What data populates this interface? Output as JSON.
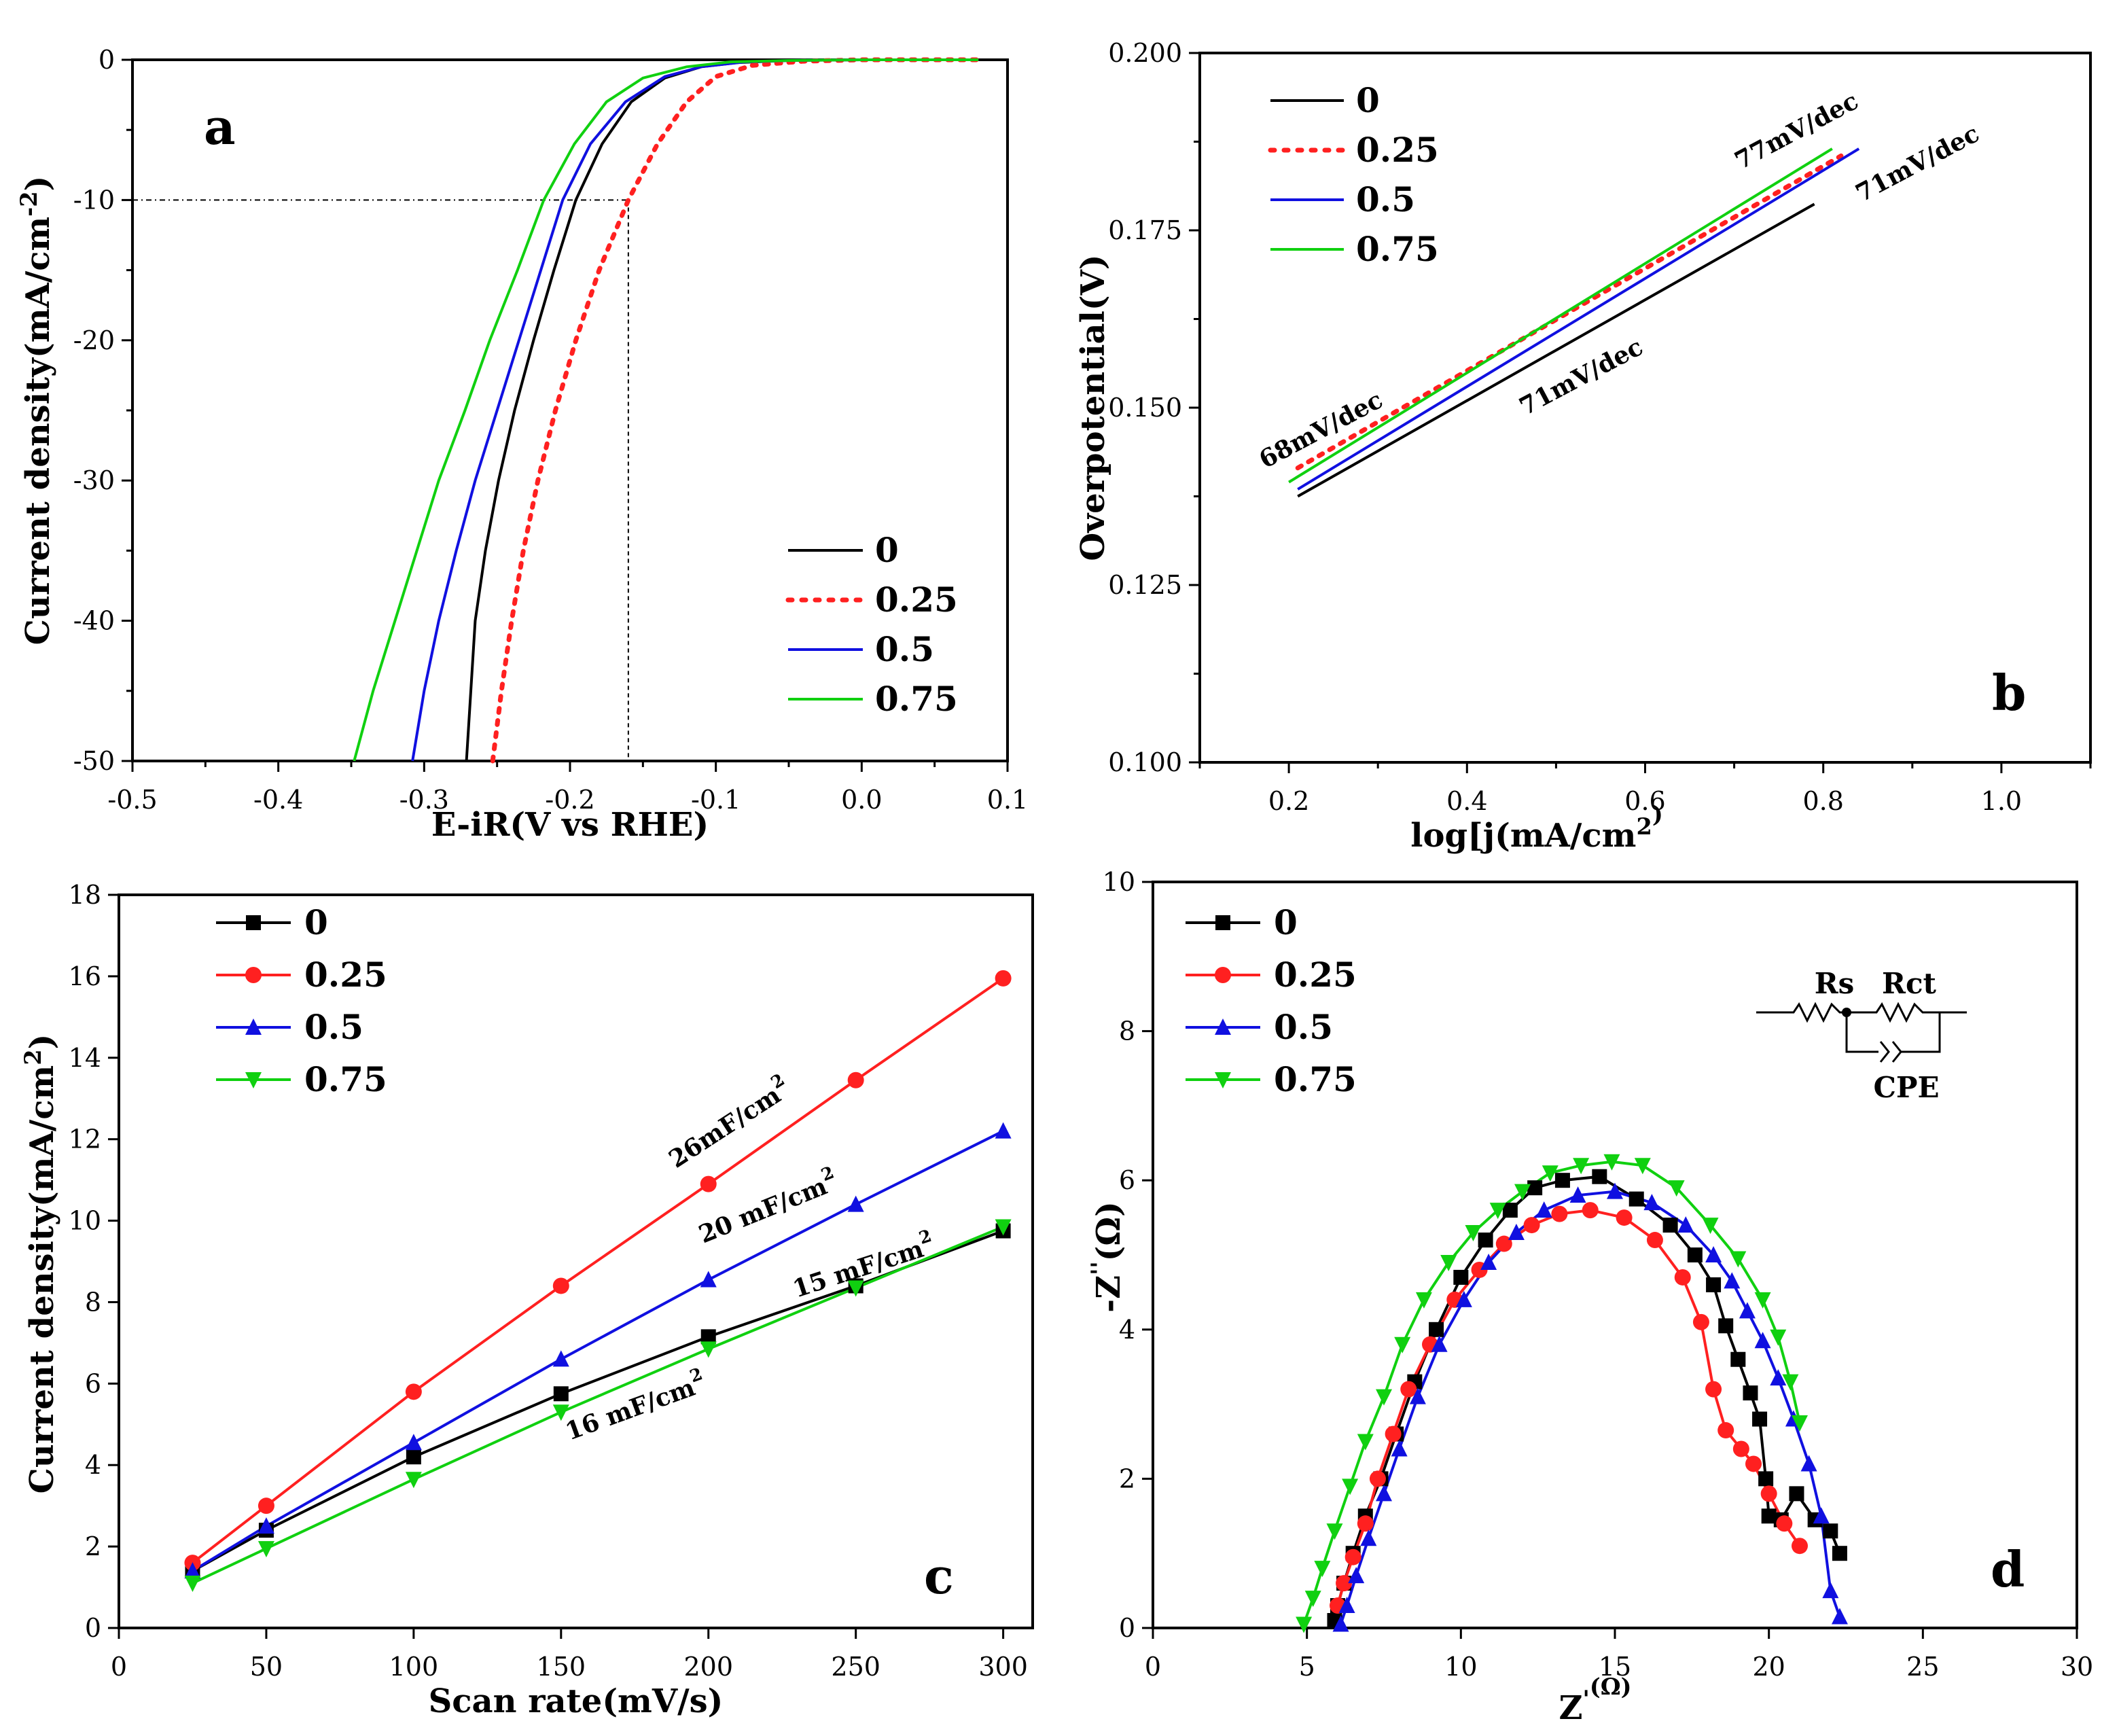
{
  "chart_data": [
    {
      "panel": "a",
      "type": "line",
      "xlabel": "E-iR(V vs RHE)",
      "ylabel": "Current density(mA/cm-2)",
      "xlim": [
        -0.5,
        0.1
      ],
      "ylim": [
        -50,
        0
      ],
      "xticks": [
        "-0.5",
        "-0.4",
        "-0.3",
        "-0.2",
        "-0.1",
        "0.0",
        "0.1"
      ],
      "yticks": [
        "0",
        "-10",
        "-20",
        "-30",
        "-40",
        "-50"
      ],
      "legend": [
        "0",
        "0.25",
        "0.5",
        "0.75"
      ],
      "colors": [
        "#000000",
        "#ff2020",
        "#1010e0",
        "#10d010"
      ],
      "reference": {
        "y": -10,
        "x": -0.16
      },
      "series": [
        {
          "name": "0",
          "x": [
            -0.271,
            -0.268,
            -0.265,
            -0.258,
            -0.249,
            -0.238,
            -0.225,
            -0.211,
            -0.196,
            -0.178,
            -0.158,
            -0.135,
            -0.11,
            -0.085,
            -0.05,
            0.0,
            0.08
          ],
          "y": [
            -50,
            -45,
            -40,
            -35,
            -30,
            -25,
            -20,
            -15,
            -10,
            -6,
            -3,
            -1.3,
            -0.5,
            -0.2,
            -0.05,
            0,
            0
          ]
        },
        {
          "name": "0.25",
          "x": [
            -0.253,
            -0.247,
            -0.24,
            -0.232,
            -0.222,
            -0.21,
            -0.196,
            -0.18,
            -0.16,
            -0.14,
            -0.12,
            -0.1,
            -0.075,
            -0.04,
            0.0,
            0.08
          ],
          "y": [
            -50,
            -45,
            -40,
            -35,
            -30,
            -25,
            -20,
            -15,
            -10,
            -6,
            -3,
            -1.2,
            -0.4,
            -0.1,
            0,
            0
          ]
        },
        {
          "name": "0.5",
          "x": [
            -0.308,
            -0.3,
            -0.29,
            -0.278,
            -0.265,
            -0.25,
            -0.235,
            -0.22,
            -0.205,
            -0.186,
            -0.162,
            -0.135,
            -0.11,
            -0.08,
            -0.05,
            0.0,
            0.08
          ],
          "y": [
            -50,
            -45,
            -40,
            -35,
            -30,
            -25,
            -20,
            -15,
            -10,
            -6,
            -3,
            -1.2,
            -0.5,
            -0.15,
            -0.05,
            0,
            0
          ]
        },
        {
          "name": "0.75",
          "x": [
            -0.348,
            -0.335,
            -0.32,
            -0.305,
            -0.29,
            -0.272,
            -0.255,
            -0.236,
            -0.218,
            -0.197,
            -0.175,
            -0.15,
            -0.12,
            -0.09,
            -0.05,
            0.0,
            0.08
          ],
          "y": [
            -50,
            -45,
            -40,
            -35,
            -30,
            -25,
            -20,
            -15,
            -10,
            -6,
            -3,
            -1.3,
            -0.5,
            -0.15,
            -0.05,
            0,
            0
          ]
        }
      ]
    },
    {
      "panel": "b",
      "type": "line",
      "xlabel": "log[j(mA/cm2)",
      "ylabel": "Overpotential(V)",
      "xlim": [
        0.1,
        1.1
      ],
      "ylim": [
        0.1,
        0.2
      ],
      "xticks": [
        "0.2",
        "0.4",
        "0.6",
        "0.8",
        "1.0"
      ],
      "yticks": [
        "0.200",
        "0.175",
        "0.150",
        "0.125",
        "0.100"
      ],
      "legend": [
        "0",
        "0.25",
        "0.5",
        "0.75"
      ],
      "colors": [
        "#000000",
        "#ff2020",
        "#1010e0",
        "#10d010"
      ],
      "annotations": [
        "77mV/dec",
        "71mV/dec",
        "68mV/dec",
        "71mV/dec"
      ],
      "series": [
        {
          "name": "0",
          "x": [
            0.21,
            0.79
          ],
          "y": [
            0.1375,
            0.1787
          ]
        },
        {
          "name": "0.25",
          "x": [
            0.21,
            0.82
          ],
          "y": [
            0.1415,
            0.1855
          ]
        },
        {
          "name": "0.5",
          "x": [
            0.21,
            0.84
          ],
          "y": [
            0.1385,
            0.1865
          ]
        },
        {
          "name": "0.75",
          "x": [
            0.2,
            0.81
          ],
          "y": [
            0.1395,
            0.1865
          ]
        }
      ]
    },
    {
      "panel": "c",
      "type": "scatter",
      "xlabel": "Scan rate(mV/s)",
      "ylabel": "Current density(mA/cm2)",
      "xlim": [
        0,
        310
      ],
      "ylim": [
        0,
        18
      ],
      "xticks": [
        "0",
        "50",
        "100",
        "150",
        "200",
        "250",
        "300"
      ],
      "yticks": [
        "0",
        "2",
        "4",
        "6",
        "8",
        "10",
        "12",
        "14",
        "16",
        "18"
      ],
      "legend": [
        "0",
        "0.25",
        "0.5",
        "0.75"
      ],
      "colors": [
        "#000000",
        "#ff2020",
        "#1010e0",
        "#10d010"
      ],
      "annotations": [
        "26mF/cm2",
        "20 mF/cm2",
        "15 mF/cm2",
        "16 mF/cm2"
      ],
      "x": [
        25,
        50,
        100,
        150,
        200,
        250,
        300
      ],
      "series": [
        {
          "name": "0",
          "values": [
            1.4,
            2.4,
            4.2,
            5.75,
            7.15,
            8.4,
            9.75
          ]
        },
        {
          "name": "0.25",
          "values": [
            1.6,
            3.0,
            5.8,
            8.4,
            10.9,
            13.45,
            15.95
          ]
        },
        {
          "name": "0.5",
          "values": [
            1.4,
            2.5,
            4.55,
            6.6,
            8.55,
            10.4,
            12.2
          ]
        },
        {
          "name": "0.75",
          "values": [
            1.1,
            1.95,
            3.65,
            5.3,
            6.85,
            8.35,
            9.85
          ]
        }
      ]
    },
    {
      "panel": "d",
      "type": "scatter",
      "xlabel": "Z'(Ω)",
      "ylabel": "-Z''(Ω)",
      "xlim": [
        0,
        30
      ],
      "ylim": [
        0,
        10
      ],
      "xticks": [
        "0",
        "5",
        "10",
        "15",
        "20",
        "25",
        "30"
      ],
      "yticks": [
        "0",
        "2",
        "4",
        "6",
        "8",
        "10"
      ],
      "legend": [
        "0",
        "0.25",
        "0.5",
        "0.75"
      ],
      "colors": [
        "#000000",
        "#ff2020",
        "#1010e0",
        "#10d010"
      ],
      "circuit": {
        "r1": "Rs",
        "r2": "Rct",
        "c": "CPE"
      },
      "series": [
        {
          "name": "0",
          "x": [
            5.9,
            6.0,
            6.2,
            6.5,
            6.9,
            7.4,
            7.9,
            8.5,
            9.2,
            10.0,
            10.8,
            11.6,
            12.4,
            13.3,
            14.5,
            15.7,
            16.8,
            17.6,
            18.2,
            18.6,
            19.0,
            19.4,
            19.7,
            19.9,
            20.0,
            20.4,
            20.9,
            21.5,
            22.0,
            22.3
          ],
          "y": [
            0.1,
            0.3,
            0.6,
            1.0,
            1.5,
            2.0,
            2.6,
            3.3,
            4.0,
            4.7,
            5.2,
            5.6,
            5.9,
            6.0,
            6.05,
            5.75,
            5.4,
            5.0,
            4.6,
            4.05,
            3.6,
            3.15,
            2.8,
            2.0,
            1.5,
            1.45,
            1.8,
            1.45,
            1.3,
            1.0
          ]
        },
        {
          "name": "0.25",
          "x": [
            6.0,
            6.2,
            6.5,
            6.9,
            7.3,
            7.8,
            8.3,
            9.0,
            9.8,
            10.6,
            11.4,
            12.3,
            13.2,
            14.2,
            15.3,
            16.3,
            17.2,
            17.8,
            18.2,
            18.6,
            19.1,
            19.5,
            20.0,
            20.5,
            21.0
          ],
          "y": [
            0.3,
            0.6,
            0.95,
            1.4,
            2.0,
            2.6,
            3.2,
            3.8,
            4.4,
            4.8,
            5.15,
            5.4,
            5.55,
            5.6,
            5.5,
            5.2,
            4.7,
            4.1,
            3.2,
            2.65,
            2.4,
            2.2,
            1.8,
            1.4,
            1.1
          ]
        },
        {
          "name": "0.5",
          "x": [
            6.1,
            6.3,
            6.6,
            7.0,
            7.5,
            8.0,
            8.6,
            9.3,
            10.1,
            10.9,
            11.8,
            12.7,
            13.8,
            15.0,
            16.2,
            17.3,
            18.2,
            18.8,
            19.3,
            19.8,
            20.3,
            20.8,
            21.3,
            21.7,
            22.0,
            22.3
          ],
          "y": [
            0.05,
            0.3,
            0.7,
            1.2,
            1.8,
            2.4,
            3.1,
            3.8,
            4.4,
            4.9,
            5.3,
            5.6,
            5.8,
            5.85,
            5.7,
            5.4,
            5.0,
            4.65,
            4.25,
            3.85,
            3.35,
            2.8,
            2.2,
            1.5,
            0.5,
            0.15
          ]
        },
        {
          "name": "0.75",
          "x": [
            4.9,
            5.2,
            5.5,
            5.9,
            6.4,
            6.9,
            7.5,
            8.1,
            8.8,
            9.6,
            10.4,
            11.2,
            12.0,
            12.9,
            13.9,
            14.9,
            15.9,
            17.0,
            18.1,
            19.0,
            19.8,
            20.3,
            20.7,
            21.0
          ],
          "y": [
            0.05,
            0.4,
            0.8,
            1.3,
            1.9,
            2.5,
            3.1,
            3.8,
            4.4,
            4.9,
            5.3,
            5.6,
            5.85,
            6.1,
            6.2,
            6.25,
            6.2,
            5.9,
            5.4,
            4.95,
            4.4,
            3.9,
            3.3,
            2.75
          ]
        }
      ]
    }
  ]
}
